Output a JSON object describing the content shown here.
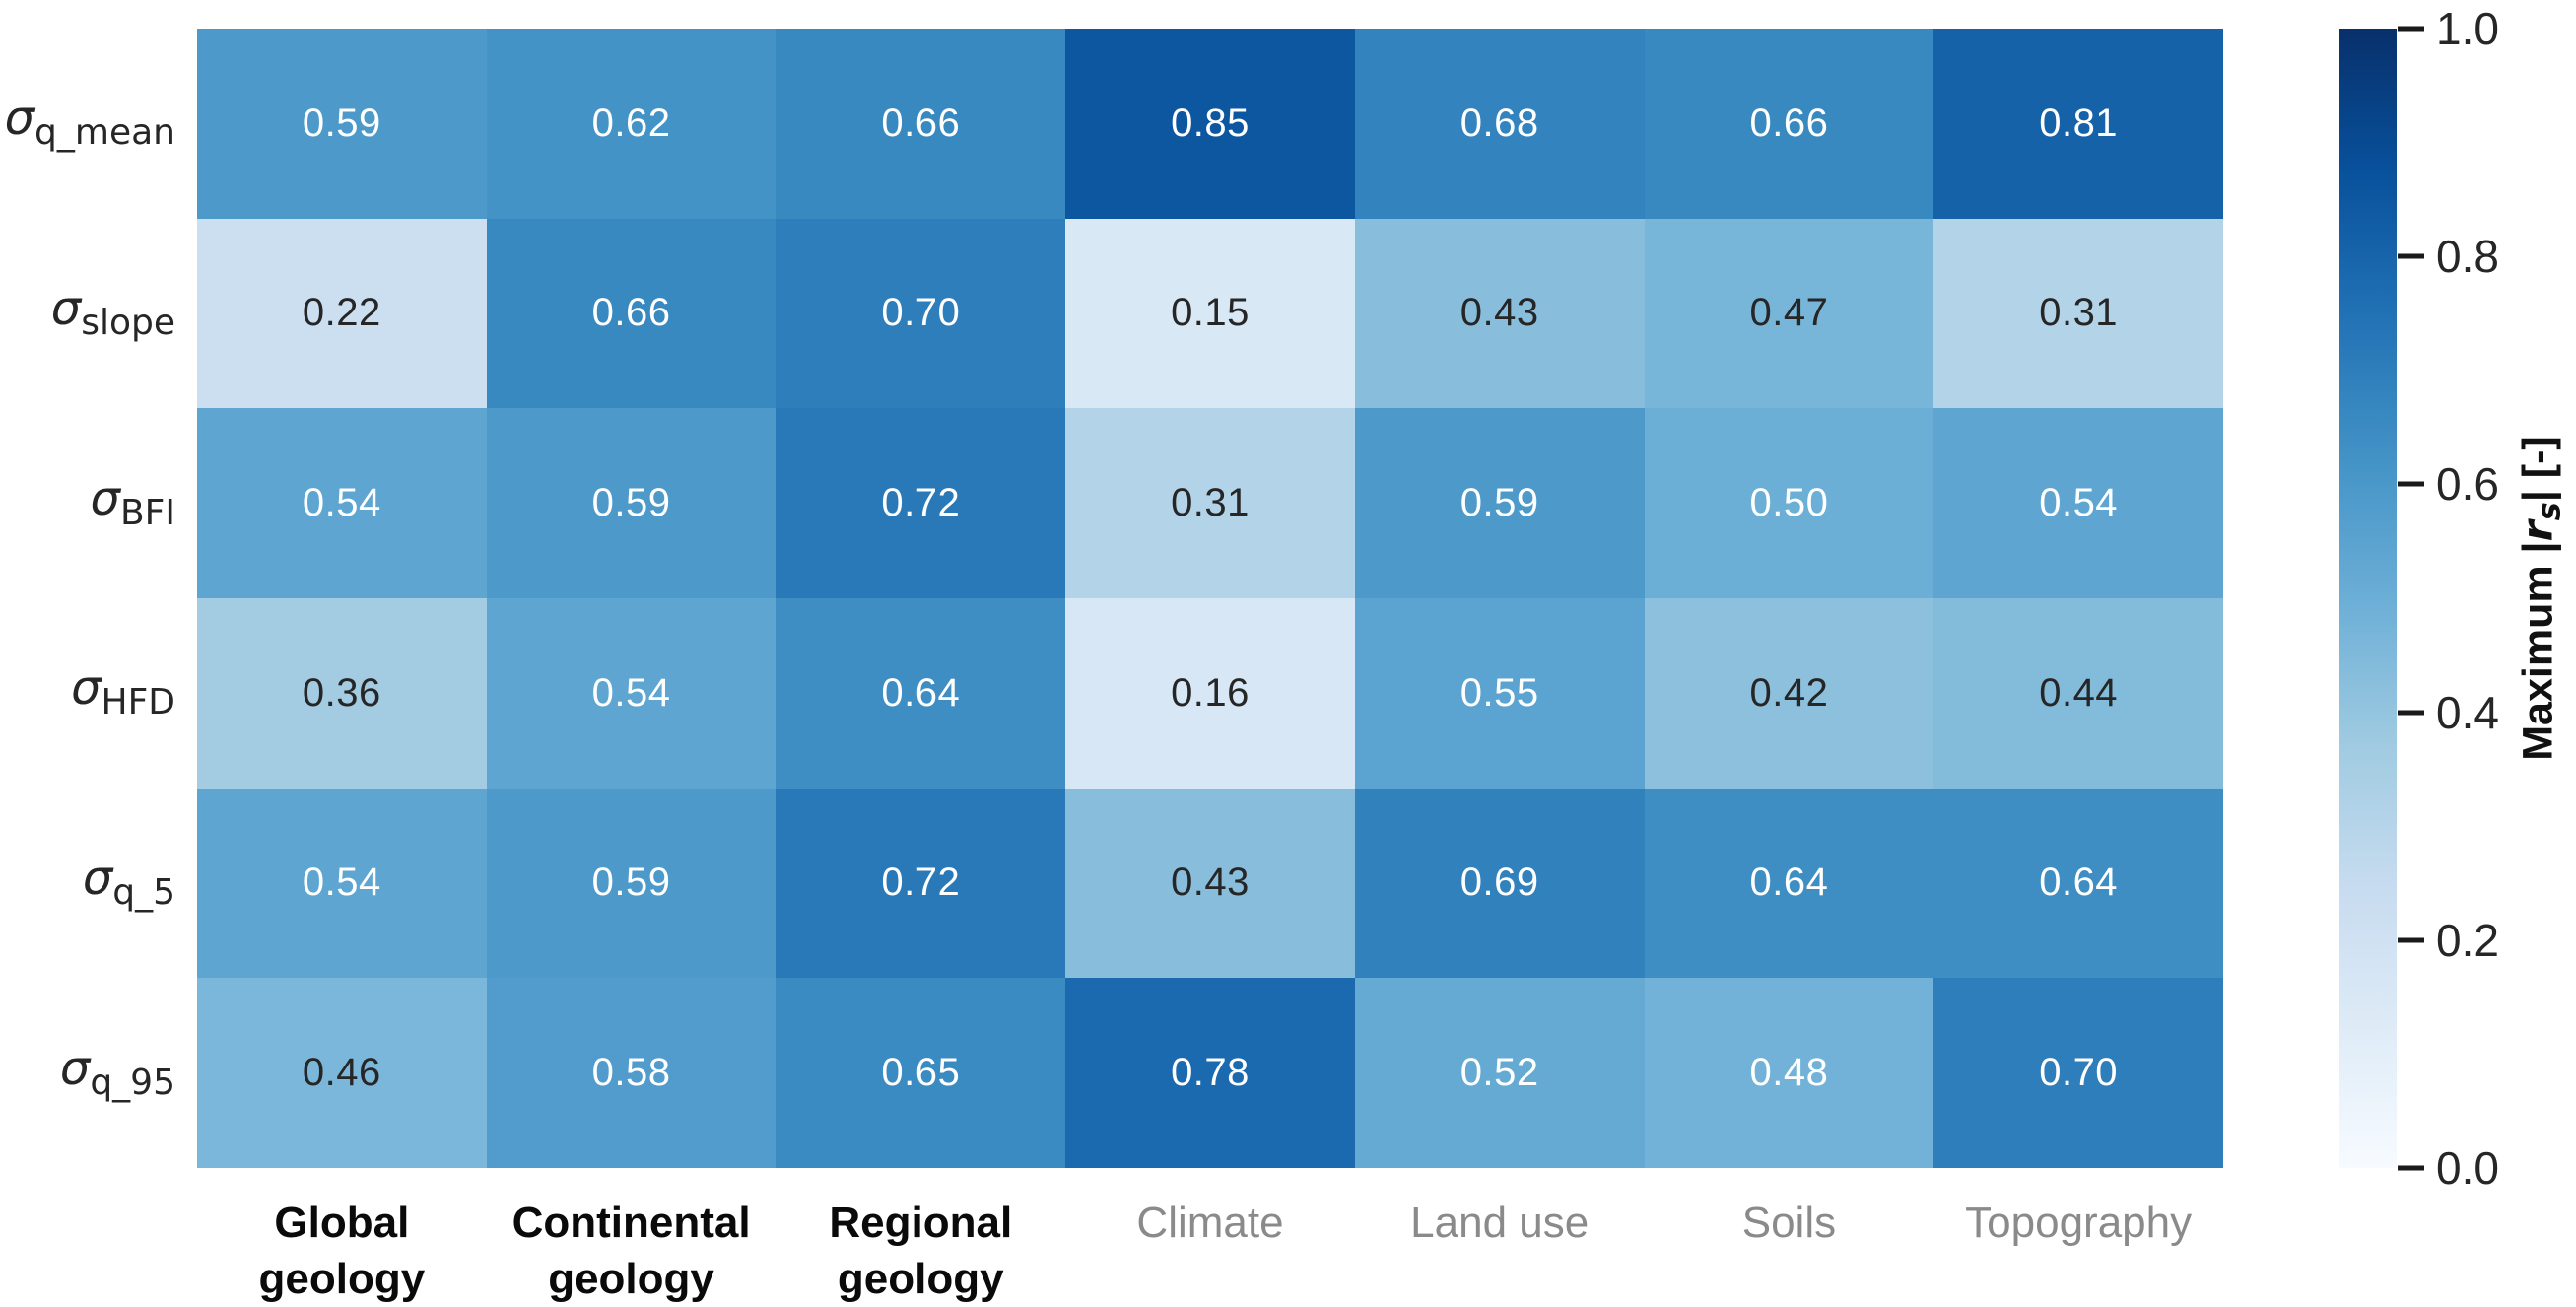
{
  "chart_data": {
    "type": "heatmap",
    "rows": [
      {
        "symbol": "σ",
        "subscript": "q_mean"
      },
      {
        "symbol": "σ",
        "subscript": "slope"
      },
      {
        "symbol": "σ",
        "subscript": "BFI"
      },
      {
        "symbol": "σ",
        "subscript": "HFD"
      },
      {
        "symbol": "σ",
        "subscript": "q_5"
      },
      {
        "symbol": "σ",
        "subscript": "q_95"
      }
    ],
    "columns": [
      {
        "label": "Global geology",
        "lines": [
          "Global",
          "geology"
        ],
        "bold": true
      },
      {
        "label": "Continental geology",
        "lines": [
          "Continental",
          "geology"
        ],
        "bold": true
      },
      {
        "label": "Regional geology",
        "lines": [
          "Regional",
          "geology"
        ],
        "bold": true
      },
      {
        "label": "Climate",
        "lines": [
          "Climate"
        ],
        "bold": false
      },
      {
        "label": "Land use",
        "lines": [
          "Land use"
        ],
        "bold": false
      },
      {
        "label": "Soils",
        "lines": [
          "Soils"
        ],
        "bold": false
      },
      {
        "label": "Topography",
        "lines": [
          "Topography"
        ],
        "bold": false
      }
    ],
    "values": [
      [
        0.59,
        0.62,
        0.66,
        0.85,
        0.68,
        0.66,
        0.81
      ],
      [
        0.22,
        0.66,
        0.7,
        0.15,
        0.43,
        0.47,
        0.31
      ],
      [
        0.54,
        0.59,
        0.72,
        0.31,
        0.59,
        0.5,
        0.54
      ],
      [
        0.36,
        0.54,
        0.64,
        0.16,
        0.55,
        0.42,
        0.44
      ],
      [
        0.54,
        0.59,
        0.72,
        0.43,
        0.69,
        0.64,
        0.64
      ],
      [
        0.46,
        0.58,
        0.65,
        0.78,
        0.52,
        0.48,
        0.7
      ]
    ],
    "value_format_decimals": 2,
    "colorbar": {
      "label_parts": {
        "prefix": "Maximum |",
        "variable": "r",
        "variable_subscript": "s",
        "suffix": "| [-]"
      },
      "ticks": [
        "1.0",
        "0.8",
        "0.6",
        "0.4",
        "0.2",
        "0.0"
      ],
      "min": 0.0,
      "max": 1.0,
      "legend_position": "right"
    },
    "colormap": {
      "name": "Blues",
      "stops": [
        {
          "t": 0.0,
          "color": "#f7fbff"
        },
        {
          "t": 0.125,
          "color": "#deebf7"
        },
        {
          "t": 0.25,
          "color": "#c6dbef"
        },
        {
          "t": 0.375,
          "color": "#9ecae1"
        },
        {
          "t": 0.5,
          "color": "#6baed6"
        },
        {
          "t": 0.625,
          "color": "#4292c6"
        },
        {
          "t": 0.75,
          "color": "#2171b5"
        },
        {
          "t": 0.875,
          "color": "#08519c"
        },
        {
          "t": 1.0,
          "color": "#08306b"
        }
      ]
    },
    "style": {
      "annotation_white_threshold": 0.48,
      "annotation_color_light": "#ffffff",
      "annotation_color_dark": "#262626",
      "column_label_color_bold": "#0a0a0a",
      "column_label_color_gray": "#8a8a8a",
      "row_label_color": "#262626",
      "tick_color": "#262626",
      "background": "#ffffff"
    }
  }
}
